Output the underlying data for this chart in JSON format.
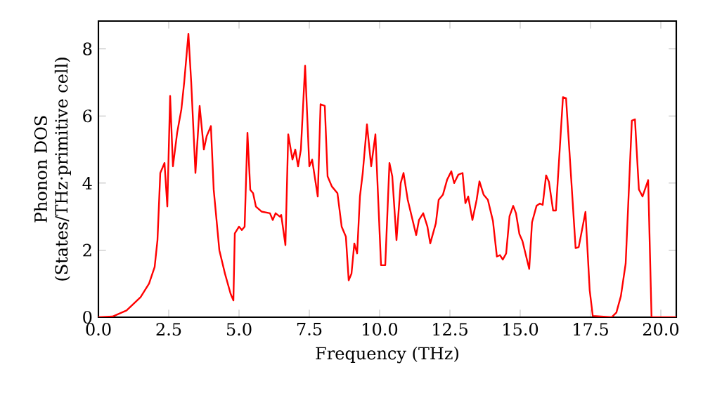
{
  "chart_data": {
    "type": "line",
    "xlabel": "Frequency (THz)",
    "ylabel": "Phonon DOS\n(States/THz·primitive cell)",
    "x": [
      0,
      0.5,
      1.0,
      1.5,
      1.8,
      2.0,
      2.1,
      2.2,
      2.35,
      2.45,
      2.55,
      2.65,
      2.8,
      2.95,
      3.05,
      3.2,
      3.3,
      3.45,
      3.6,
      3.75,
      3.85,
      4.0,
      4.1,
      4.3,
      4.5,
      4.7,
      4.8,
      4.85,
      5.0,
      5.1,
      5.2,
      5.3,
      5.4,
      5.5,
      5.6,
      5.8,
      6.1,
      6.2,
      6.3,
      6.45,
      6.5,
      6.65,
      6.75,
      6.9,
      7.0,
      7.1,
      7.2,
      7.35,
      7.5,
      7.6,
      7.8,
      7.9,
      8.05,
      8.15,
      8.3,
      8.5,
      8.65,
      8.8,
      8.9,
      9.0,
      9.1,
      9.2,
      9.3,
      9.4,
      9.55,
      9.7,
      9.85,
      10.05,
      10.2,
      10.35,
      10.45,
      10.6,
      10.75,
      10.85,
      11.0,
      11.2,
      11.3,
      11.4,
      11.55,
      11.7,
      11.8,
      12.0,
      12.1,
      12.25,
      12.4,
      12.55,
      12.65,
      12.8,
      12.95,
      13.05,
      13.15,
      13.3,
      13.45,
      13.55,
      13.7,
      13.85,
      14.03,
      14.17,
      14.28,
      14.38,
      14.5,
      14.62,
      14.75,
      14.85,
      14.97,
      15.08,
      15.32,
      15.42,
      15.58,
      15.7,
      15.8,
      15.92,
      16.02,
      16.17,
      16.27,
      16.52,
      16.63,
      16.97,
      17.08,
      17.32,
      17.47,
      17.58,
      18.25,
      18.42,
      18.58,
      18.75,
      18.97,
      19.08,
      19.22,
      19.35,
      19.55,
      19.67,
      20.55
    ],
    "values": [
      0,
      0.02,
      0.2,
      0.6,
      1.0,
      1.5,
      2.3,
      4.3,
      4.6,
      3.3,
      6.6,
      4.5,
      5.5,
      6.2,
      7.0,
      8.45,
      7.0,
      4.3,
      6.3,
      5.0,
      5.4,
      5.7,
      3.8,
      2.0,
      1.3,
      0.7,
      0.5,
      2.5,
      2.7,
      2.6,
      2.7,
      5.5,
      3.8,
      3.7,
      3.3,
      3.15,
      3.1,
      2.9,
      3.1,
      3.0,
      3.05,
      2.15,
      5.45,
      4.7,
      5.0,
      4.5,
      5.0,
      7.5,
      4.5,
      4.7,
      3.6,
      6.35,
      6.3,
      4.2,
      3.9,
      3.7,
      2.7,
      2.4,
      1.1,
      1.3,
      2.2,
      1.9,
      3.6,
      4.3,
      5.75,
      4.5,
      5.45,
      1.55,
      1.55,
      4.6,
      4.2,
      2.3,
      4.0,
      4.3,
      3.5,
      2.8,
      2.45,
      2.9,
      3.1,
      2.7,
      2.2,
      2.8,
      3.5,
      3.65,
      4.1,
      4.35,
      4.0,
      4.25,
      4.3,
      3.4,
      3.6,
      2.9,
      3.5,
      4.05,
      3.65,
      3.5,
      2.87,
      1.81,
      1.85,
      1.72,
      1.9,
      3.01,
      3.32,
      3.1,
      2.48,
      2.27,
      1.44,
      2.83,
      3.32,
      3.39,
      3.35,
      4.23,
      4.04,
      3.18,
      3.18,
      6.56,
      6.53,
      2.06,
      2.09,
      3.14,
      0.81,
      0.04,
      0,
      0.14,
      0.63,
      1.6,
      5.86,
      5.9,
      3.81,
      3.6,
      4.09,
      0,
      0
    ],
    "color": "#ff0000",
    "xlim": [
      0,
      20.55
    ],
    "ylim": [
      0,
      8.83
    ],
    "xticks": [
      {
        "value": 0,
        "label": "0.0"
      },
      2.5,
      {
        "value": 5,
        "label": "5.0"
      },
      7.5,
      {
        "value": 10,
        "label": "10.0"
      },
      12.5,
      {
        "value": 15,
        "label": "15.0"
      },
      17.5,
      {
        "value": 20,
        "label": "20.0"
      }
    ],
    "yticks": [
      0,
      2,
      4,
      6,
      8
    ],
    "line_style": "solid",
    "marker": "none"
  }
}
